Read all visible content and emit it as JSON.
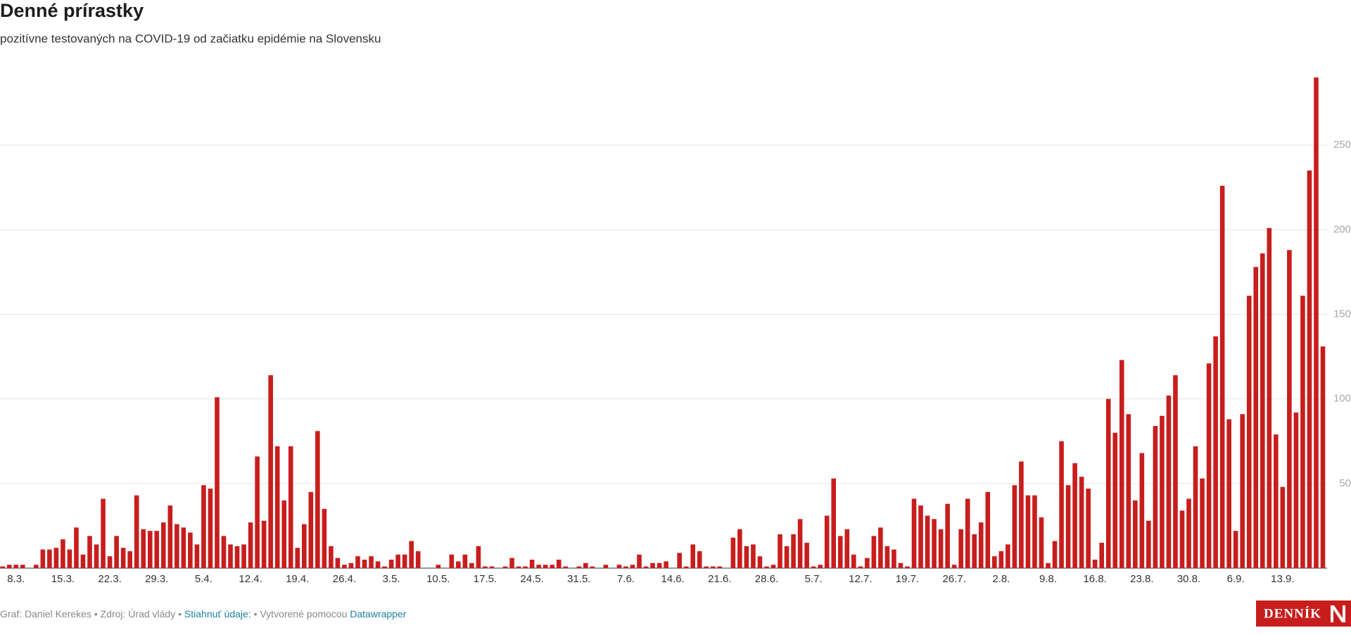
{
  "chart_data": {
    "type": "bar",
    "title": "Denné prírastky",
    "subtitle": "pozitívne testovaných na COVID-19 od začiatku epidémie na Slovensku",
    "color": "#c71e1d",
    "categories": [
      null,
      null,
      "8.3.",
      null,
      null,
      null,
      null,
      null,
      null,
      "15.3.",
      null,
      null,
      null,
      null,
      null,
      null,
      "22.3.",
      null,
      null,
      null,
      null,
      null,
      null,
      "29.3.",
      null,
      null,
      null,
      null,
      null,
      null,
      "5.4.",
      null,
      null,
      null,
      null,
      null,
      null,
      "12.4.",
      null,
      null,
      null,
      null,
      null,
      null,
      "19.4.",
      null,
      null,
      null,
      null,
      null,
      null,
      "26.4.",
      null,
      null,
      null,
      null,
      null,
      null,
      "3.5.",
      null,
      null,
      null,
      null,
      null,
      null,
      "10.5.",
      null,
      null,
      null,
      null,
      null,
      null,
      "17.5.",
      null,
      null,
      null,
      null,
      null,
      null,
      "24.5.",
      null,
      null,
      null,
      null,
      null,
      null,
      "31.5.",
      null,
      null,
      null,
      null,
      null,
      null,
      "7.6.",
      null,
      null,
      null,
      null,
      null,
      null,
      "14.6.",
      null,
      null,
      null,
      null,
      null,
      null,
      "21.6.",
      null,
      null,
      null,
      null,
      null,
      null,
      "28.6.",
      null,
      null,
      null,
      null,
      null,
      null,
      "5.7.",
      null,
      null,
      null,
      null,
      null,
      null,
      "12.7.",
      null,
      null,
      null,
      null,
      null,
      null,
      "19.7.",
      null,
      null,
      null,
      null,
      null,
      null,
      "26.7.",
      null,
      null,
      null,
      null,
      null,
      null,
      "2.8.",
      null,
      null,
      null,
      null,
      null,
      null,
      "9.8.",
      null,
      null,
      null,
      null,
      null,
      null,
      "16.8.",
      null,
      null,
      null,
      null,
      null,
      null,
      "23.8.",
      null,
      null,
      null,
      null,
      null,
      null,
      "30.8.",
      null,
      null,
      null,
      null,
      null,
      null,
      "6.9.",
      null,
      null,
      null,
      null,
      null,
      null,
      "13.9.",
      null,
      null,
      null,
      null,
      null,
      null
    ],
    "values": [
      1,
      2,
      2,
      2,
      0,
      2,
      11,
      11,
      12,
      17,
      11,
      24,
      8,
      19,
      14,
      41,
      7,
      19,
      12,
      10,
      43,
      23,
      22,
      22,
      27,
      37,
      26,
      24,
      21,
      14,
      49,
      47,
      101,
      19,
      14,
      13,
      14,
      27,
      66,
      28,
      114,
      72,
      40,
      72,
      12,
      26,
      45,
      81,
      35,
      13,
      6,
      2,
      3,
      7,
      5,
      7,
      4,
      1,
      5,
      8,
      8,
      16,
      10,
      0,
      0,
      2,
      0,
      8,
      4,
      8,
      3,
      13,
      1,
      1,
      0,
      1,
      6,
      1,
      1,
      5,
      2,
      2,
      2,
      5,
      1,
      0,
      1,
      3,
      1,
      0,
      2,
      0,
      2,
      1,
      2,
      8,
      1,
      3,
      3,
      4,
      0,
      9,
      1,
      14,
      10,
      1,
      1,
      1,
      0,
      18,
      23,
      13,
      14,
      7,
      1,
      2,
      20,
      13,
      20,
      29,
      15,
      1,
      2,
      31,
      53,
      19,
      23,
      8,
      1,
      6,
      19,
      24,
      13,
      11,
      3,
      1,
      41,
      37,
      31,
      29,
      23,
      38,
      2,
      23,
      41,
      20,
      27,
      45,
      7,
      10,
      14,
      49,
      63,
      43,
      43,
      30,
      3,
      16,
      75,
      49,
      62,
      54,
      47,
      5,
      15,
      100,
      80,
      123,
      91,
      40,
      68,
      28,
      84,
      90,
      102,
      114,
      34,
      41,
      72,
      53,
      121,
      137,
      226,
      88,
      22,
      91,
      161,
      178,
      186,
      201,
      79,
      48,
      188,
      92,
      161,
      235,
      290,
      131
    ],
    "ylim": [
      0,
      300
    ],
    "yticks": [
      50,
      100,
      150,
      200,
      250
    ],
    "grid": true
  },
  "footer": {
    "parts": [
      "Graf: Daniel Kerekes • Zdroj: Úrad vlády • ",
      "Stiahnuť údaje:",
      " • Vytvorené pomocou ",
      "Datawrapper"
    ]
  },
  "logo": {
    "text": "DENNÍK"
  }
}
